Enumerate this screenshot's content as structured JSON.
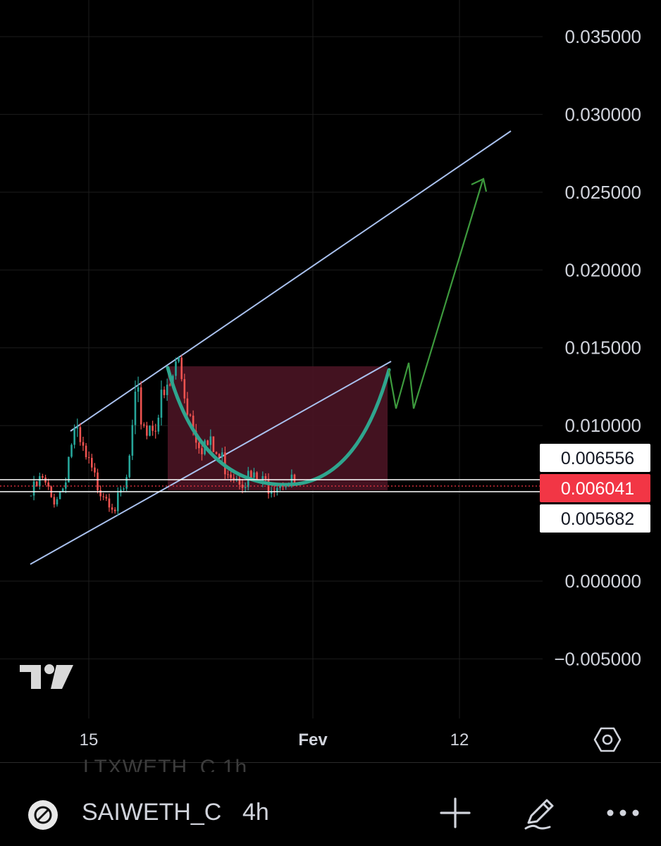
{
  "chart_data": {
    "type": "candlestick",
    "symbol": "SAIWETH_C",
    "interval": "4h",
    "y_axis": {
      "ticks": [
        "0.035000",
        "0.030000",
        "0.025000",
        "0.020000",
        "0.015000",
        "0.010000",
        "0.000000",
        "−0.005000"
      ],
      "tick_values": [
        0.035,
        0.03,
        0.025,
        0.02,
        0.015,
        0.01,
        0.0,
        -0.005
      ]
    },
    "x_axis": {
      "ticks": [
        "15",
        "Fev",
        "12"
      ]
    },
    "price_labels": [
      {
        "value": "0.006556",
        "kind": "high"
      },
      {
        "value": "0.006041",
        "kind": "last"
      },
      {
        "value": "0.005682",
        "kind": "low"
      }
    ],
    "approx_series": {
      "description_values": [
        0.0055,
        0.0065,
        0.0052,
        0.006,
        0.0095,
        0.008,
        0.0065,
        0.0058,
        0.0048,
        0.006,
        0.0115,
        0.0098,
        0.0108,
        0.012,
        0.0142,
        0.011,
        0.0092,
        0.0085,
        0.0078,
        0.0072,
        0.0068,
        0.0065,
        0.0062,
        0.0064,
        0.0066,
        0.0061
      ]
    },
    "colors": {
      "up": "#26a69a",
      "down": "#ef5350",
      "channel": "#a9c1ee",
      "cup": "#2fa58e",
      "projection": "#3d9a3d",
      "zone": "#4a1423",
      "last_price": "#f23645"
    }
  },
  "logo": {
    "name": "tradingview-logo"
  },
  "bottom_bar": {
    "ghost_symbol": "LTXWETH_C  1h",
    "symbol": "SAIWETH_C",
    "interval": "4h",
    "add_icon": "plus-icon",
    "draw_icon": "pencil-icon",
    "more_icon": "more-icon",
    "settings_icon": "settings-icon"
  }
}
